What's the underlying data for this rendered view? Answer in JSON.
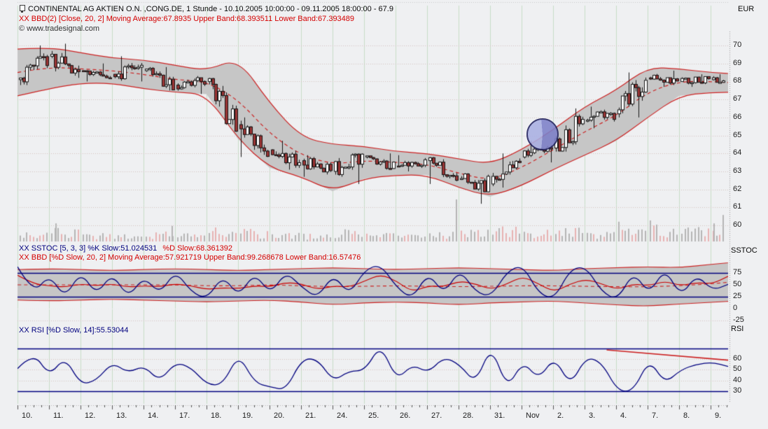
{
  "window": {
    "title": "CONTINENTAL AG AKTIEN O.N. ,CONG.DE, 1 Stunde - 10.10.2005 10:00:00 - 09.11.2005 18:00:00 - 67.9",
    "currency_label": "EUR",
    "copyright": "© www.tradesignal.com"
  },
  "panels": {
    "main": {
      "indicator_line": "XX BBD(2) [Close, 20, 2] Moving Average:67.8935 Upper Band:68.393511 Lower Band:67.393489",
      "y_ticks": [
        70,
        69,
        68,
        67,
        66,
        65,
        64,
        63,
        62,
        61,
        60
      ]
    },
    "sstoc": {
      "axis_label": "SSTOC",
      "line1_left": "XX SSTOC [5, 3, 3] %K Slow:51.024531",
      "line1_right": "%D Slow:68.361392",
      "line2": "XX BBD [%D Slow, 20, 2] Moving Average:57.921719 Upper Band:99.268678 Lower Band:16.57476",
      "y_ticks": [
        75,
        50,
        25,
        0,
        -25
      ]
    },
    "rsi": {
      "axis_label": "RSI",
      "line1": "XX RSI [%D Slow, 14]:55.53044",
      "y_ticks": [
        60,
        50,
        40,
        30
      ]
    }
  },
  "x_axis": {
    "labels": [
      "10.",
      "11.",
      "12.",
      "13.",
      "14.",
      "17.",
      "18.",
      "19.",
      "20.",
      "21.",
      "24.",
      "25.",
      "26.",
      "27.",
      "28.",
      "31.",
      "Nov",
      "2.",
      "3.",
      "4.",
      "7.",
      "8.",
      "9."
    ]
  },
  "colors": {
    "background": "#eff0f2",
    "grid_vertical": "#c8dcc8",
    "grid_dotted": "#d6c0c0",
    "band_fill": "#c6c6c6",
    "band_line": "#cc2222",
    "candle_up": "#ffffff",
    "candle_down": "#9b3434",
    "candle_outline": "#151515",
    "line_navy": "#00007f",
    "line_red": "#cc0000",
    "volume_gray": "#b5b5b5",
    "volume_pink": "#e8b2b2",
    "highlight_light": "#a9afe2",
    "highlight_dark": "#7d7fc8"
  },
  "chart_data": [
    {
      "type": "candlestick",
      "title": "CONTINENTAL AG AKTIEN O.N. ,CONG.DE, 1 Stunde",
      "ylabel": "EUR",
      "ylim": [
        59.2,
        72.2
      ],
      "categories": [
        "10.",
        "11.",
        "12.",
        "13.",
        "14.",
        "17.",
        "18.",
        "19.",
        "20.",
        "21.",
        "24.",
        "25.",
        "26.",
        "27.",
        "28.",
        "31.",
        "Nov",
        "2.",
        "3.",
        "4.",
        "7.",
        "8.",
        "9."
      ],
      "daily_ohlc": [
        {
          "o": 68.1,
          "h": 70.0,
          "l": 67.8,
          "c": 69.4
        },
        {
          "o": 69.4,
          "h": 70.1,
          "l": 68.2,
          "c": 68.6
        },
        {
          "o": 68.6,
          "h": 69.0,
          "l": 68.0,
          "c": 68.4
        },
        {
          "o": 68.4,
          "h": 69.4,
          "l": 68.0,
          "c": 68.6
        },
        {
          "o": 68.6,
          "h": 68.8,
          "l": 67.5,
          "c": 67.8
        },
        {
          "o": 67.8,
          "h": 68.3,
          "l": 67.3,
          "c": 68.0
        },
        {
          "o": 68.0,
          "h": 68.2,
          "l": 65.2,
          "c": 65.6
        },
        {
          "o": 65.6,
          "h": 66.0,
          "l": 63.8,
          "c": 64.2
        },
        {
          "o": 64.2,
          "h": 64.7,
          "l": 63.1,
          "c": 63.6
        },
        {
          "o": 63.6,
          "h": 63.9,
          "l": 62.7,
          "c": 63.0
        },
        {
          "o": 63.0,
          "h": 64.0,
          "l": 62.3,
          "c": 63.8
        },
        {
          "o": 63.8,
          "h": 64.0,
          "l": 63.1,
          "c": 63.3
        },
        {
          "o": 63.3,
          "h": 63.9,
          "l": 63.0,
          "c": 63.6
        },
        {
          "o": 63.6,
          "h": 63.8,
          "l": 62.3,
          "c": 62.6
        },
        {
          "o": 62.6,
          "h": 62.9,
          "l": 61.2,
          "c": 62.3
        },
        {
          "o": 62.3,
          "h": 64.0,
          "l": 62.1,
          "c": 63.8
        },
        {
          "o": 63.8,
          "h": 64.7,
          "l": 63.5,
          "c": 64.3
        },
        {
          "o": 64.3,
          "h": 66.5,
          "l": 64.1,
          "c": 65.8
        },
        {
          "o": 65.8,
          "h": 66.6,
          "l": 65.4,
          "c": 66.2
        },
        {
          "o": 66.2,
          "h": 68.5,
          "l": 66.0,
          "c": 68.2
        },
        {
          "o": 68.2,
          "h": 68.6,
          "l": 67.7,
          "c": 68.0
        },
        {
          "o": 68.0,
          "h": 68.4,
          "l": 67.7,
          "c": 68.1
        },
        {
          "o": 68.1,
          "h": 68.4,
          "l": 67.6,
          "c": 67.9
        }
      ],
      "bollinger": {
        "period": 20,
        "stddev": 2,
        "current": {
          "ma": 67.8935,
          "upper": 68.393511,
          "lower": 67.393489
        },
        "upper_keypoints": [
          69.8,
          69.9,
          69.6,
          69.3,
          69.2,
          68.9,
          68.6,
          69.3,
          66.8,
          64.9,
          64.5,
          64.4,
          64.1,
          64.0,
          63.7,
          63.4,
          64.2,
          65.3,
          66.6,
          67.5,
          68.8,
          68.7,
          68.5,
          68.4
        ],
        "mid_keypoints": [
          68.5,
          68.8,
          68.7,
          68.6,
          68.4,
          68.1,
          68.0,
          67.0,
          65.1,
          63.9,
          63.4,
          63.6,
          63.5,
          63.4,
          62.9,
          62.5,
          63.2,
          64.2,
          65.2,
          66.1,
          67.4,
          68.0,
          68.0,
          67.9
        ],
        "lower_keypoints": [
          67.2,
          67.6,
          67.9,
          67.9,
          67.6,
          67.4,
          67.3,
          64.8,
          63.2,
          62.7,
          61.9,
          62.6,
          62.8,
          62.8,
          62.1,
          61.6,
          62.2,
          63.1,
          63.9,
          64.7,
          66.0,
          67.2,
          67.4,
          67.4
        ]
      },
      "volume_profile": [
        0.35,
        0.5,
        0.3,
        0.3,
        0.35,
        0.3,
        0.5,
        0.45,
        0.35,
        0.3,
        0.45,
        0.3,
        0.3,
        0.35,
        0.5,
        0.55,
        0.45,
        0.5,
        0.35,
        0.45,
        0.6,
        0.55,
        0.7
      ],
      "volume_spikes": [
        {
          "t": 1.22,
          "h": 0.43
        },
        {
          "t": 4.91,
          "h": 0.37
        },
        {
          "t": 13.93,
          "h": 1.0
        },
        {
          "t": 19.09,
          "h": 0.47
        },
        {
          "t": 20.09,
          "h": 0.5
        },
        {
          "t": 22.1,
          "h": 0.43
        },
        {
          "t": 22.4,
          "h": 0.63
        }
      ],
      "highlight_circle": {
        "near_label": "2.",
        "price": 65.0
      }
    },
    {
      "type": "line",
      "name": "SSTOC",
      "ylim": [
        -35,
        150
      ],
      "hlines": [
        75,
        25
      ],
      "current": {
        "k_slow": 51.024531,
        "d_slow": 68.361392,
        "bb_ma": 57.921719,
        "bb_upper": 99.268678,
        "bb_lower": 16.57476
      },
      "percent_k": [
        88,
        30,
        72,
        22,
        78,
        28,
        75,
        22,
        68,
        30,
        80,
        35,
        20,
        70,
        25,
        76,
        30,
        78,
        45,
        22,
        73,
        28,
        82,
        93,
        45,
        20,
        76,
        30,
        83,
        35,
        25,
        78,
        92,
        32,
        20,
        83,
        88,
        35,
        18,
        78,
        30,
        85,
        25,
        72,
        38,
        51
      ],
      "percent_d": [
        70,
        52,
        48,
        45,
        52,
        48,
        52,
        45,
        48,
        46,
        52,
        48,
        40,
        44,
        42,
        48,
        46,
        55,
        52,
        40,
        48,
        45,
        58,
        72,
        58,
        35,
        48,
        46,
        58,
        52,
        40,
        52,
        68,
        52,
        35,
        52,
        62,
        52,
        40,
        52,
        48,
        58,
        48,
        55,
        52,
        68
      ],
      "band_upper": [
        82,
        84,
        82,
        80,
        82,
        84,
        82,
        80,
        82,
        84,
        86,
        84,
        82,
        84,
        86,
        84,
        82,
        80,
        84,
        86,
        88,
        86,
        93,
        99
      ],
      "band_mid": [
        50,
        50,
        50,
        50,
        50,
        50,
        48,
        48,
        50,
        48,
        46,
        47,
        48,
        47,
        46,
        47,
        48,
        48,
        47,
        46,
        46,
        48,
        52,
        58
      ],
      "band_lower": [
        18,
        16,
        18,
        20,
        18,
        16,
        14,
        16,
        18,
        14,
        8,
        12,
        14,
        12,
        8,
        12,
        14,
        16,
        12,
        8,
        5,
        10,
        13,
        17
      ]
    },
    {
      "type": "line",
      "name": "RSI",
      "ylim": [
        18,
        82
      ],
      "hlines": [
        70,
        30
      ],
      "current": 55.53044,
      "values": [
        51,
        67,
        44,
        62,
        36,
        40,
        57,
        47,
        54,
        39,
        57,
        52,
        36,
        36,
        65,
        38,
        34,
        31,
        60,
        60,
        39,
        49,
        49,
        74,
        40,
        55,
        47,
        62,
        55,
        37,
        73,
        32,
        58,
        41,
        62,
        35,
        62,
        57,
        30,
        30,
        60,
        37,
        50,
        55,
        57,
        53
      ],
      "trendline": {
        "v_start": 68.5,
        "v_end": 58.8,
        "t_start": 18.7,
        "t_end": 22.6
      }
    }
  ]
}
